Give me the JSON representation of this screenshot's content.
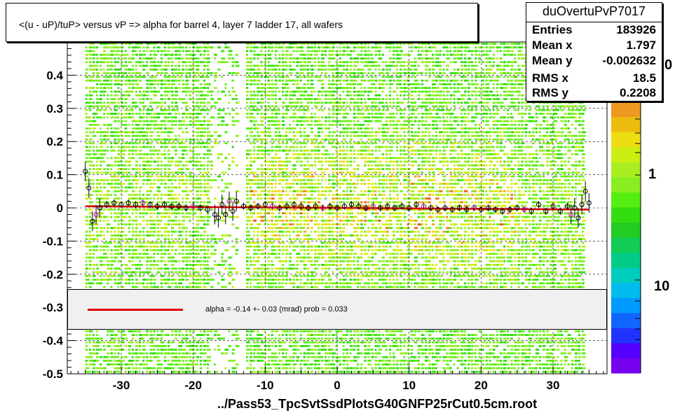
{
  "title": "<(u - uP)/tuP> versus   vP => alpha for barrel 4, layer 7 ladder 17, all wafers",
  "stats": {
    "name": "duOvertuPvP7017",
    "rows": [
      {
        "label": "Entries",
        "value": "183926"
      },
      {
        "label": "Mean x",
        "value": "1.797"
      },
      {
        "label": "Mean y",
        "value": "-0.002632"
      },
      {
        "label": "RMS x",
        "value": "18.5"
      },
      {
        "label": "RMS y",
        "value": "0.2208"
      }
    ]
  },
  "legend": {
    "text": "alpha =   -0.14 +-  0.03 (mrad) prob = 0.033",
    "line_color": "#e00000"
  },
  "footer": "../Pass53_TpcSvtSsdPlotsG40GNFP25rCut0.5cm.root",
  "colorbar": {
    "labels": [
      "1",
      "10"
    ],
    "clipped_top": "0"
  },
  "chart_data": {
    "type": "heatmap",
    "title": "<(u - uP)/tuP> versus   vP => alpha for barrel 4, layer 7 ladder 17, all wafers",
    "xlim": [
      -37.5,
      37.5
    ],
    "ylim": [
      -0.5,
      0.5
    ],
    "x_ticks": [
      -30,
      -20,
      -10,
      0,
      10,
      20,
      30
    ],
    "x_tick_labels": [
      "-30",
      "-20",
      "-10",
      "0",
      "10",
      "20",
      "30"
    ],
    "y_ticks": [
      -0.5,
      -0.4,
      -0.3,
      -0.2,
      -0.1,
      0,
      0.1,
      0.2,
      0.3,
      0.4
    ],
    "y_tick_labels": [
      "-0.5",
      "-0.4",
      "-0.3",
      "-0.2",
      "-0.1",
      "0",
      "0.1",
      "0.2",
      "0.3",
      "0.4"
    ],
    "grid": true,
    "populated_x_range": [
      -35,
      34.5
    ],
    "gap_x_range": [
      -13.8,
      -12.7
    ],
    "fit_line": {
      "slope_mrad": -0.14,
      "error_mrad": 0.03,
      "prob": 0.033,
      "intercept": 0.0,
      "x_range": [
        -35,
        35
      ],
      "color": "#e00000"
    },
    "profile_points": [
      {
        "x": -35.0,
        "y": 0.11
      },
      {
        "x": -34.5,
        "y": 0.06
      },
      {
        "x": -34.0,
        "y": -0.04
      },
      {
        "x": -33.5,
        "y": -0.02
      },
      {
        "x": -33.0,
        "y": 0.0
      },
      {
        "x": -32.0,
        "y": 0.01
      },
      {
        "x": -31.0,
        "y": 0.015
      },
      {
        "x": -30.0,
        "y": 0.01
      },
      {
        "x": -29.0,
        "y": 0.015
      },
      {
        "x": -28.0,
        "y": 0.01
      },
      {
        "x": -27.0,
        "y": 0.015
      },
      {
        "x": -26.0,
        "y": 0.01
      },
      {
        "x": -25.0,
        "y": 0.005
      },
      {
        "x": -24.0,
        "y": 0.01
      },
      {
        "x": -23.0,
        "y": 0.005
      },
      {
        "x": -22.0,
        "y": 0.005
      },
      {
        "x": -21.0,
        "y": 0.0
      },
      {
        "x": -20.0,
        "y": 0.005
      },
      {
        "x": -19.0,
        "y": 0.0
      },
      {
        "x": -18.0,
        "y": -0.005
      },
      {
        "x": -17.0,
        "y": -0.02
      },
      {
        "x": -16.5,
        "y": -0.03
      },
      {
        "x": -16.0,
        "y": 0.01
      },
      {
        "x": -15.5,
        "y": -0.02
      },
      {
        "x": -15.0,
        "y": 0.02
      },
      {
        "x": -14.5,
        "y": -0.01
      },
      {
        "x": -14.0,
        "y": 0.02
      },
      {
        "x": -13.0,
        "y": 0.005
      },
      {
        "x": -12.0,
        "y": 0.0
      },
      {
        "x": -11.0,
        "y": 0.005
      },
      {
        "x": -10.0,
        "y": 0.01
      },
      {
        "x": -9.0,
        "y": 0.005
      },
      {
        "x": -8.0,
        "y": 0.0
      },
      {
        "x": -7.0,
        "y": 0.005
      },
      {
        "x": -6.0,
        "y": 0.01
      },
      {
        "x": -5.0,
        "y": 0.005
      },
      {
        "x": -4.0,
        "y": 0.0
      },
      {
        "x": -3.0,
        "y": 0.005
      },
      {
        "x": -2.0,
        "y": 0.0
      },
      {
        "x": -1.0,
        "y": 0.005
      },
      {
        "x": 0.0,
        "y": 0.0
      },
      {
        "x": 1.0,
        "y": 0.005
      },
      {
        "x": 2.0,
        "y": 0.01
      },
      {
        "x": 3.0,
        "y": 0.005
      },
      {
        "x": 4.0,
        "y": 0.0
      },
      {
        "x": 5.0,
        "y": 0.005
      },
      {
        "x": 6.0,
        "y": 0.0
      },
      {
        "x": 7.0,
        "y": 0.005
      },
      {
        "x": 8.0,
        "y": 0.0
      },
      {
        "x": 9.0,
        "y": 0.005
      },
      {
        "x": 10.0,
        "y": 0.0
      },
      {
        "x": 11.0,
        "y": 0.01
      },
      {
        "x": 12.0,
        "y": 0.005
      },
      {
        "x": 13.0,
        "y": 0.0
      },
      {
        "x": 14.0,
        "y": -0.005
      },
      {
        "x": 15.0,
        "y": 0.0
      },
      {
        "x": 16.0,
        "y": -0.005
      },
      {
        "x": 17.0,
        "y": 0.0
      },
      {
        "x": 18.0,
        "y": -0.005
      },
      {
        "x": 19.0,
        "y": 0.0
      },
      {
        "x": 20.0,
        "y": -0.005
      },
      {
        "x": 21.0,
        "y": 0.0
      },
      {
        "x": 22.0,
        "y": -0.005
      },
      {
        "x": 23.0,
        "y": -0.01
      },
      {
        "x": 24.0,
        "y": -0.005
      },
      {
        "x": 25.0,
        "y": 0.0
      },
      {
        "x": 26.0,
        "y": -0.005
      },
      {
        "x": 27.0,
        "y": -0.01
      },
      {
        "x": 28.0,
        "y": 0.01
      },
      {
        "x": 29.0,
        "y": -0.01
      },
      {
        "x": 30.0,
        "y": 0.005
      },
      {
        "x": 31.0,
        "y": -0.01
      },
      {
        "x": 32.0,
        "y": 0.005
      },
      {
        "x": 32.5,
        "y": -0.02
      },
      {
        "x": 33.0,
        "y": 0.0
      },
      {
        "x": 33.5,
        "y": -0.03
      },
      {
        "x": 34.0,
        "y": 0.01
      },
      {
        "x": 34.5,
        "y": 0.05
      },
      {
        "x": 35.0,
        "y": 0.015
      }
    ]
  }
}
